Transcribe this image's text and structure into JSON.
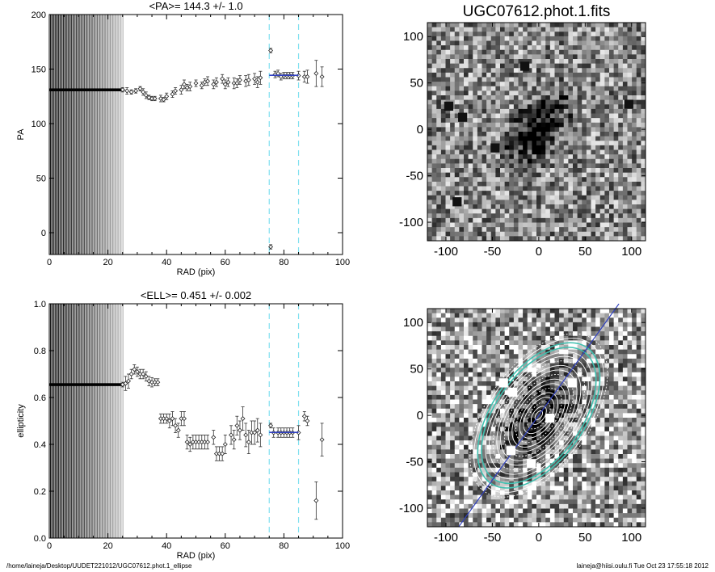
{
  "footer": {
    "left": "/home/laineja/Desktop/UUDET221012/UGC07612.phot.1_ellipse",
    "right": "laineja@hiisi.oulu.fi  Tue Oct 23 17:55:18 2012"
  },
  "image_title": "UGC07612.phot.1.fits",
  "colors": {
    "fit": "#3040c0",
    "guide": "#80e0f0",
    "contour": "#40c0b0"
  },
  "chart_data": [
    {
      "type": "scatter",
      "title": "<PA>= 144.3 +/-   1.0",
      "xlabel": "RAD (pix)",
      "ylabel": "PA",
      "xlim": [
        0,
        100
      ],
      "ylim": [
        -20,
        200
      ],
      "xticks": [
        "0",
        "20",
        "40",
        "60",
        "80",
        "100"
      ],
      "yticks": [
        "0",
        "50",
        "100",
        "150",
        "200"
      ],
      "ytick_values": [
        0,
        50,
        100,
        150,
        200
      ],
      "guides": [
        75,
        85
      ],
      "inner_points": {
        "x_start": 0.4,
        "x_end": 25,
        "step": 0.4,
        "y": 131
      },
      "points": [
        [
          25,
          131,
          2
        ],
        [
          26.5,
          130,
          3
        ],
        [
          28,
          129,
          2
        ],
        [
          29.5,
          130,
          2
        ],
        [
          31,
          132,
          2
        ],
        [
          32,
          129,
          3
        ],
        [
          33,
          126,
          3
        ],
        [
          34,
          124,
          2
        ],
        [
          35,
          123,
          2
        ],
        [
          36,
          123,
          2
        ],
        [
          38,
          123,
          3
        ],
        [
          39,
          122,
          2
        ],
        [
          40,
          125,
          3
        ],
        [
          42,
          127,
          3
        ],
        [
          43,
          130,
          3
        ],
        [
          45,
          131,
          4
        ],
        [
          46,
          136,
          4
        ],
        [
          47,
          133,
          3
        ],
        [
          48,
          134,
          4
        ],
        [
          50,
          137,
          3
        ],
        [
          52,
          135,
          3
        ],
        [
          53,
          138,
          3
        ],
        [
          54,
          139,
          4
        ],
        [
          56,
          136,
          4
        ],
        [
          57,
          138,
          4
        ],
        [
          59,
          141,
          4
        ],
        [
          60,
          136,
          4
        ],
        [
          61,
          138,
          4
        ],
        [
          63,
          137,
          5
        ],
        [
          64,
          137,
          4
        ],
        [
          65,
          140,
          4
        ],
        [
          67,
          139,
          5
        ],
        [
          68,
          140,
          5
        ],
        [
          70,
          141,
          5
        ],
        [
          71,
          138,
          5
        ],
        [
          72,
          142,
          6
        ],
        [
          75.5,
          167,
          2
        ],
        [
          75.5,
          -13,
          2
        ],
        [
          77,
          145,
          3
        ],
        [
          78,
          146,
          3
        ],
        [
          79,
          143,
          3
        ],
        [
          80,
          144,
          3
        ],
        [
          81,
          144,
          3
        ],
        [
          82,
          144,
          3
        ],
        [
          83,
          144,
          3
        ],
        [
          85,
          144,
          4
        ],
        [
          87,
          143,
          5
        ],
        [
          88,
          143,
          6
        ],
        [
          91,
          146,
          12
        ],
        [
          93,
          143,
          9
        ]
      ],
      "fit": {
        "x": [
          75,
          85
        ],
        "y": 144.3
      }
    },
    {
      "type": "scatter",
      "title": "<ELL>= 0.451 +/-  0.002",
      "xlabel": "RAD (pix)",
      "ylabel": "ellipticity",
      "xlim": [
        0,
        100
      ],
      "ylim": [
        0,
        1
      ],
      "xticks": [
        "0",
        "20",
        "40",
        "60",
        "80",
        "100"
      ],
      "yticks": [
        "0.0",
        "0.2",
        "0.4",
        "0.6",
        "0.8",
        "1.0"
      ],
      "ytick_values": [
        0,
        0.2,
        0.4,
        0.6,
        0.8,
        1.0
      ],
      "guides": [
        75,
        85
      ],
      "inner_points": {
        "x_start": 0.4,
        "x_end": 25,
        "step": 0.4,
        "y": 0.655
      },
      "points": [
        [
          25,
          0.655,
          0.01
        ],
        [
          26,
          0.66,
          0.03
        ],
        [
          27,
          0.67,
          0.03
        ],
        [
          28,
          0.7,
          0.02
        ],
        [
          29,
          0.72,
          0.02
        ],
        [
          30,
          0.71,
          0.02
        ],
        [
          31,
          0.7,
          0.02
        ],
        [
          32,
          0.7,
          0.02
        ],
        [
          33,
          0.69,
          0.02
        ],
        [
          34,
          0.67,
          0.02
        ],
        [
          35,
          0.665,
          0.02
        ],
        [
          36,
          0.665,
          0.015
        ],
        [
          37,
          0.665,
          0.015
        ],
        [
          38,
          0.51,
          0.02
        ],
        [
          39,
          0.51,
          0.02
        ],
        [
          40,
          0.51,
          0.02
        ],
        [
          41,
          0.5,
          0.03
        ],
        [
          42,
          0.51,
          0.03
        ],
        [
          43,
          0.48,
          0.03
        ],
        [
          44,
          0.46,
          0.03
        ],
        [
          45,
          0.51,
          0.03
        ],
        [
          46,
          0.51,
          0.03
        ],
        [
          47,
          0.41,
          0.03
        ],
        [
          48,
          0.4,
          0.03
        ],
        [
          49,
          0.41,
          0.03
        ],
        [
          50,
          0.41,
          0.03
        ],
        [
          51,
          0.41,
          0.03
        ],
        [
          52,
          0.41,
          0.03
        ],
        [
          53,
          0.41,
          0.03
        ],
        [
          54,
          0.41,
          0.03
        ],
        [
          56,
          0.43,
          0.03
        ],
        [
          57,
          0.36,
          0.03
        ],
        [
          58,
          0.36,
          0.03
        ],
        [
          59,
          0.36,
          0.03
        ],
        [
          60,
          0.4,
          0.04
        ],
        [
          62,
          0.44,
          0.04
        ],
        [
          63,
          0.42,
          0.04
        ],
        [
          64,
          0.48,
          0.04
        ],
        [
          65,
          0.46,
          0.04
        ],
        [
          66,
          0.51,
          0.05
        ],
        [
          67,
          0.44,
          0.05
        ],
        [
          68,
          0.41,
          0.05
        ],
        [
          69,
          0.45,
          0.05
        ],
        [
          70,
          0.45,
          0.05
        ],
        [
          71,
          0.46,
          0.05
        ],
        [
          72,
          0.44,
          0.05
        ],
        [
          75.5,
          0.48,
          0.01
        ],
        [
          76.5,
          0.45,
          0.02
        ],
        [
          78,
          0.45,
          0.02
        ],
        [
          79,
          0.45,
          0.02
        ],
        [
          80,
          0.45,
          0.02
        ],
        [
          81,
          0.45,
          0.02
        ],
        [
          82,
          0.45,
          0.02
        ],
        [
          83,
          0.45,
          0.02
        ],
        [
          85,
          0.45,
          0.03
        ],
        [
          87,
          0.52,
          0.02
        ],
        [
          88,
          0.5,
          0.02
        ],
        [
          91,
          0.16,
          0.08
        ],
        [
          93,
          0.42,
          0.07
        ]
      ],
      "fit": {
        "x": [
          75,
          85
        ],
        "y": 0.451
      }
    },
    {
      "type": "heatmap",
      "title": "UGC07612.phot.1.fits",
      "xlim": [
        -120,
        115
      ],
      "ylim": [
        -120,
        115
      ],
      "xticks": [
        "-100",
        "-50",
        "0",
        "50",
        "100"
      ],
      "yticks": [
        "-100",
        "-50",
        "0",
        "50",
        "100"
      ],
      "tick_values": [
        -100,
        -50,
        0,
        50,
        100
      ]
    },
    {
      "type": "heatmap",
      "title": "",
      "xlim": [
        -120,
        115
      ],
      "ylim": [
        -120,
        115
      ],
      "xticks": [
        "-100",
        "-50",
        "0",
        "50",
        "100"
      ],
      "yticks": [
        "-100",
        "-50",
        "0",
        "50",
        "100"
      ],
      "tick_values": [
        -100,
        -50,
        0,
        50,
        100
      ],
      "ellipse": {
        "pa_deg": 144.3,
        "ellipticity": 0.451
      }
    }
  ]
}
